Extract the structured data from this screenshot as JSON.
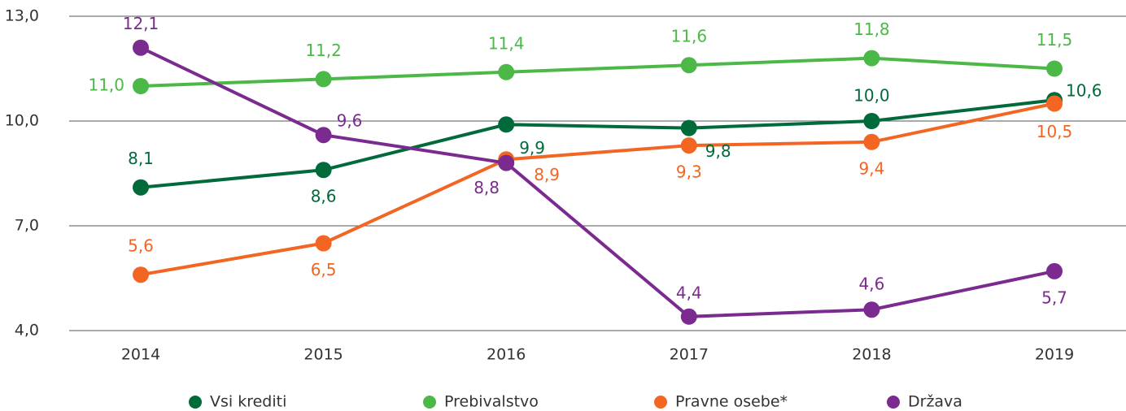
{
  "chart_data": {
    "type": "line",
    "categories": [
      "2014",
      "2015",
      "2016",
      "2017",
      "2018",
      "2019"
    ],
    "ylim": [
      4,
      13
    ],
    "yticks": [
      {
        "value": 4,
        "label": "4,0"
      },
      {
        "value": 7,
        "label": "7,0"
      },
      {
        "value": 10,
        "label": "10,0"
      },
      {
        "value": 13,
        "label": "13,0"
      }
    ],
    "grid": true,
    "legend": "bottom",
    "series": [
      {
        "name": "Vsi krediti",
        "color": "#006a3b",
        "values": [
          8.1,
          8.6,
          9.9,
          9.8,
          10.0,
          10.6
        ],
        "value_labels": [
          "8,1",
          "8,6",
          "9,9",
          "9,8",
          "10,0",
          "10,6"
        ]
      },
      {
        "name": "Prebivalstvo",
        "color": "#4cb848",
        "values": [
          11.0,
          11.2,
          11.4,
          11.6,
          11.8,
          11.5
        ],
        "value_labels": [
          "11,0",
          "11,2",
          "11,4",
          "11,6",
          "11,8",
          "11,5"
        ]
      },
      {
        "name": "Pravne osebe*",
        "color": "#f26522",
        "values": [
          5.6,
          6.5,
          8.9,
          9.3,
          9.4,
          10.5
        ],
        "value_labels": [
          "5,6",
          "6,5",
          "8,9",
          "9,3",
          "9,4",
          "10,5"
        ]
      },
      {
        "name": "Država",
        "color": "#7b2b8f",
        "values": [
          12.1,
          9.6,
          8.8,
          4.4,
          4.6,
          5.7
        ],
        "value_labels": [
          "12,1",
          "9,6",
          "8,8",
          "4,4",
          "4,6",
          "5,7"
        ]
      }
    ]
  }
}
